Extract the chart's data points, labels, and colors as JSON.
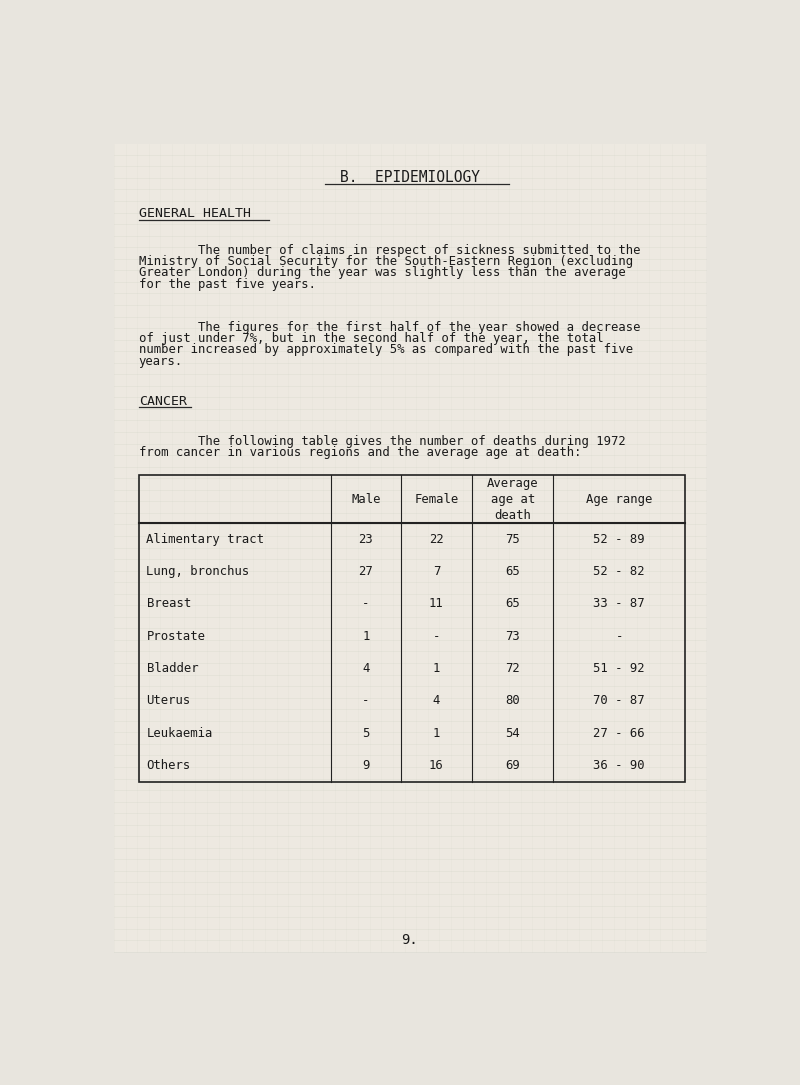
{
  "bg_color": "#e8e5de",
  "page_bg": "#ede9e1",
  "grid_color": "#c8ccc0",
  "title": "B.  EPIDEMIOLOGY",
  "section1_heading": "GENERAL HEALTH",
  "para1_lines": [
    "        The number of claims in respect of sickness submitted to the",
    "Ministry of Social Security for the South-Eastern Region (excluding",
    "Greater London) during the year was slightly less than the average",
    "for the past five years."
  ],
  "para2_lines": [
    "        The figures for the first half of the year showed a decrease",
    "of just under 7%, but in the second half of the year, the total",
    "number increased by approximately 5% as compared with the past five",
    "years."
  ],
  "section2_heading": "CANCER",
  "para3_lines": [
    "        The following table gives the number of deaths during 1972",
    "from cancer in various regions and the average age at death:"
  ],
  "table_col_headers": [
    "Male",
    "Female",
    "Average\nage at\ndeath",
    "Age range"
  ],
  "table_rows": [
    [
      "Alimentary tract",
      "23",
      "22",
      "75",
      "52 - 89"
    ],
    [
      "Lung, bronchus",
      "27",
      "7",
      "65",
      "52 - 82"
    ],
    [
      "Breast",
      "-",
      "11",
      "65",
      "33 - 87"
    ],
    [
      "Prostate",
      "1",
      "-",
      "73",
      "-"
    ],
    [
      "Bladder",
      "4",
      "1",
      "72",
      "51 - 92"
    ],
    [
      "Uterus",
      "-",
      "4",
      "80",
      "70 - 87"
    ],
    [
      "Leukaemia",
      "5",
      "1",
      "54",
      "27 - 66"
    ],
    [
      "Others",
      "9",
      "16",
      "69",
      "36 - 90"
    ]
  ],
  "page_number": "9.",
  "fs_title": 10.5,
  "fs_heading": 9.5,
  "fs_body": 8.8,
  "fs_table": 8.8,
  "fs_page": 10
}
